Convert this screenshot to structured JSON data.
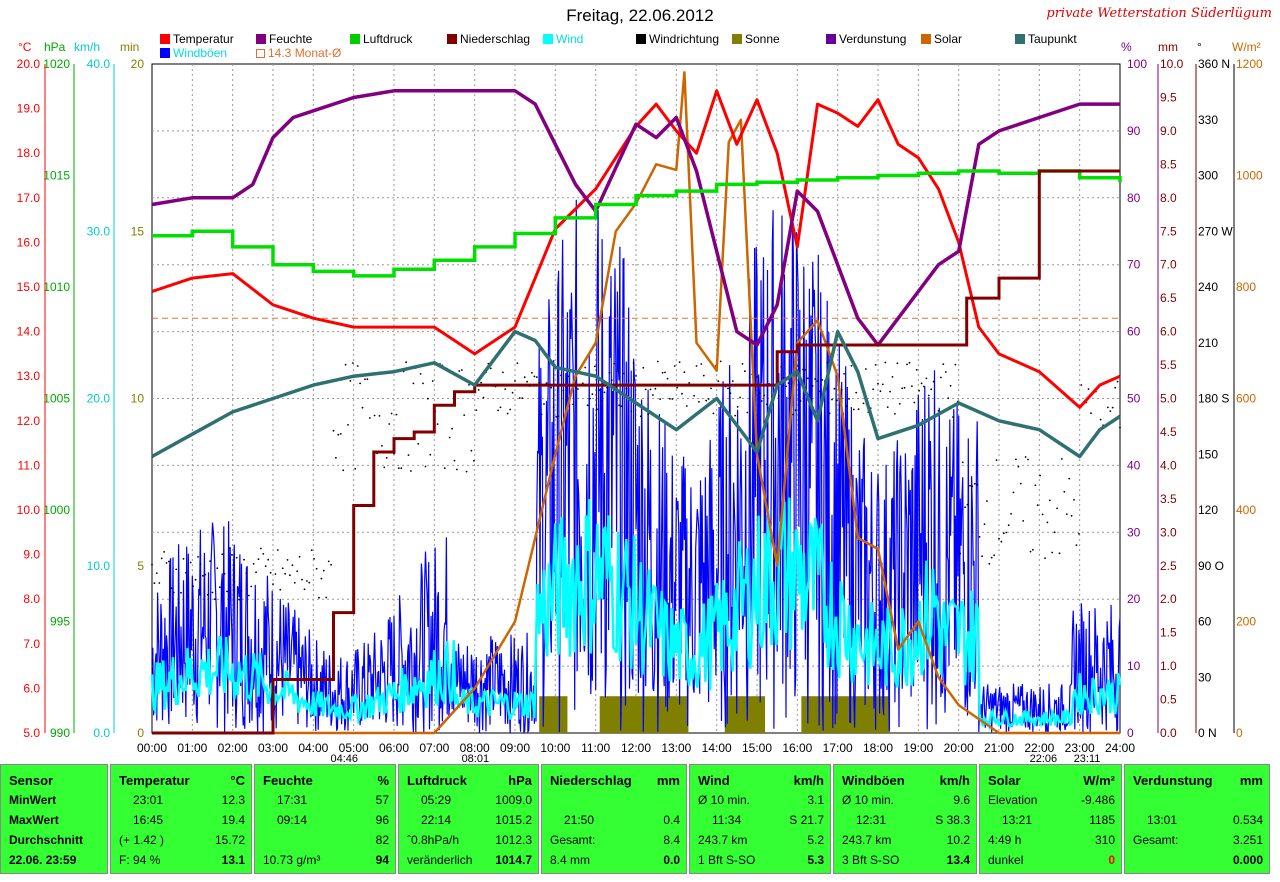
{
  "header": {
    "title": "Freitag, 22.06.2012",
    "station": "private Wetterstation Süderlügum"
  },
  "legend": [
    {
      "label": "Temperatur",
      "color": "#ff0000"
    },
    {
      "label": "Feuchte",
      "color": "#800080"
    },
    {
      "label": "Luftdruck",
      "color": "#00cc00"
    },
    {
      "label": "Niederschlag",
      "color": "#800000"
    },
    {
      "label": "Wind",
      "color": "#00ffff"
    },
    {
      "label": "Windrichtung",
      "color": "#000000"
    },
    {
      "label": "Sonne",
      "color": "#808000"
    },
    {
      "label": "Verdunstung",
      "color": "#660099"
    },
    {
      "label": "Solar",
      "color": "#cc6600"
    },
    {
      "label": "Taupunkt",
      "color": "#2f7070"
    },
    {
      "label": "Windböen",
      "color": "#0000ff"
    },
    {
      "label": "14.3 Monat-Ø",
      "color": "#e07030"
    }
  ],
  "axes": {
    "left_units": [
      "°C",
      "hPa",
      "km/h",
      "min"
    ],
    "right_units": [
      "%",
      "mm",
      "°",
      "W/m²"
    ],
    "temp_ticks": [
      "20.0",
      "19.0",
      "18.0",
      "17.0",
      "16.0",
      "15.0",
      "14.0",
      "13.0",
      "12.0",
      "11.0",
      "10.0",
      "9.0",
      "8.0",
      "7.0",
      "6.0",
      "5.0"
    ],
    "hpa_ticks": [
      "1020",
      "1015",
      "1010",
      "1005",
      "1000",
      "995",
      "990"
    ],
    "kmh_ticks": [
      "40.0",
      "30.0",
      "20.0",
      "10.0",
      "0.0"
    ],
    "min_ticks": [
      "20",
      "15",
      "10",
      "5",
      "0"
    ],
    "pct_ticks": [
      "100",
      "90",
      "80",
      "70",
      "60",
      "50",
      "40",
      "30",
      "20",
      "10",
      "0"
    ],
    "mm_ticks": [
      "10.0",
      "9.5",
      "9.0",
      "8.5",
      "8.0",
      "7.5",
      "7.0",
      "6.5",
      "6.0",
      "5.5",
      "5.0",
      "4.5",
      "4.0",
      "3.5",
      "3.0",
      "2.5",
      "2.0",
      "1.5",
      "1.0",
      "0.5",
      "0.0"
    ],
    "deg_ticks": [
      "360 N",
      "330",
      "300",
      "270 W",
      "240",
      "210",
      "180 S",
      "150",
      "120",
      "90 O",
      "60",
      "30",
      "0 N"
    ],
    "wm2_ticks": [
      "1200",
      "1000",
      "800",
      "600",
      "400",
      "200",
      "0"
    ],
    "x_ticks": [
      "00:00",
      "01:00",
      "02:00",
      "03:00",
      "04:00",
      "05:00",
      "06:00",
      "07:00",
      "08:00",
      "09:00",
      "10:00",
      "11:00",
      "12:00",
      "13:00",
      "14:00",
      "15:00",
      "16:00",
      "17:00",
      "18:00",
      "19:00",
      "20:00",
      "21:00",
      "22:00",
      "23:00",
      "24:00"
    ],
    "x_markers": [
      "04:46",
      "08:01",
      "22:06",
      "23:11"
    ]
  },
  "chart_data": {
    "type": "line",
    "x_unit": "hour of day",
    "xlim": [
      0,
      24
    ],
    "month_avg_temp": 14.3,
    "series": [
      {
        "name": "Temperatur",
        "unit": "°C",
        "x": [
          0,
          1,
          2,
          3,
          4,
          5,
          6,
          7,
          8,
          9,
          9.5,
          10,
          11,
          12,
          12.5,
          13,
          13.5,
          14,
          14.5,
          15,
          15.5,
          16,
          16.5,
          17,
          17.5,
          18,
          18.5,
          19,
          19.5,
          20,
          20.5,
          21,
          22,
          23,
          23.5,
          24
        ],
        "values": [
          14.9,
          15.2,
          15.3,
          14.6,
          14.3,
          14.1,
          14.1,
          14.1,
          13.5,
          14.1,
          15.2,
          16.3,
          17.2,
          18.6,
          19.1,
          18.5,
          18.0,
          19.4,
          18.2,
          19.2,
          18.0,
          15.9,
          19.1,
          18.9,
          18.6,
          19.2,
          18.2,
          17.9,
          17.2,
          16.0,
          14.1,
          13.5,
          13.1,
          12.3,
          12.8,
          13.0
        ]
      },
      {
        "name": "Feuchte",
        "unit": "%",
        "x": [
          0,
          1,
          2,
          2.5,
          3,
          3.5,
          4,
          5,
          6,
          7,
          8,
          9,
          9.5,
          10,
          10.5,
          11,
          12,
          12.5,
          13,
          13.5,
          14,
          14.5,
          15,
          15.5,
          16,
          16.5,
          17,
          17.5,
          18,
          18.5,
          19,
          19.5,
          20,
          20.5,
          21,
          22,
          23,
          24
        ],
        "values": [
          79,
          80,
          80,
          82,
          89,
          92,
          93,
          95,
          96,
          96,
          96,
          96,
          94,
          88,
          82,
          78,
          91,
          89,
          92,
          84,
          72,
          60,
          58,
          64,
          81,
          78,
          70,
          62,
          58,
          62,
          66,
          70,
          72,
          88,
          90,
          92,
          94,
          94
        ]
      },
      {
        "name": "Luftdruck",
        "unit": "hPa",
        "x": [
          0,
          1,
          2,
          3,
          4,
          5,
          6,
          7,
          8,
          9,
          10,
          11,
          12,
          13,
          14,
          15,
          16,
          17,
          18,
          19,
          20,
          21,
          22,
          23,
          24
        ],
        "values": [
          1012.3,
          1012.5,
          1011.8,
          1011.0,
          1010.7,
          1010.5,
          1010.8,
          1011.2,
          1011.8,
          1012.4,
          1013.1,
          1013.7,
          1014.1,
          1014.3,
          1014.6,
          1014.7,
          1014.8,
          1014.9,
          1015.0,
          1015.1,
          1015.2,
          1015.1,
          1015.2,
          1014.9,
          1014.7
        ]
      },
      {
        "name": "Niederschlag",
        "unit": "mm",
        "x": [
          0,
          2.5,
          3,
          4,
          4.5,
          5,
          5.5,
          6,
          6.5,
          7,
          7.5,
          8,
          9,
          10,
          11,
          12,
          13,
          14,
          15,
          15.5,
          16,
          17,
          18,
          19,
          20,
          20.2,
          21,
          21.5,
          22,
          23,
          24
        ],
        "values": [
          0.0,
          0.0,
          0.8,
          0.8,
          1.8,
          3.4,
          4.2,
          4.4,
          4.5,
          4.9,
          5.1,
          5.2,
          5.2,
          5.2,
          5.2,
          5.2,
          5.2,
          5.2,
          5.2,
          5.7,
          5.8,
          5.8,
          5.8,
          5.8,
          5.8,
          6.5,
          6.8,
          6.8,
          8.4,
          8.4,
          8.4
        ]
      },
      {
        "name": "Taupunkt",
        "unit": "°C",
        "x": [
          0,
          1,
          2,
          3,
          4,
          5,
          6,
          7,
          8,
          9,
          9.5,
          10,
          11,
          12,
          13,
          14,
          15,
          15.5,
          16,
          16.5,
          17,
          17.5,
          18,
          19,
          20,
          21,
          22,
          23,
          23.5,
          24
        ],
        "values": [
          11.2,
          11.7,
          12.2,
          12.5,
          12.8,
          13.0,
          13.1,
          13.3,
          12.8,
          14.0,
          13.8,
          13.2,
          13.0,
          12.4,
          11.8,
          12.5,
          11.3,
          12.8,
          13.1,
          12.0,
          14.0,
          13.1,
          11.6,
          11.9,
          12.4,
          12.0,
          11.8,
          11.2,
          11.8,
          12.1
        ]
      }
    ],
    "solar": {
      "unit": "W/m²",
      "x": [
        0,
        7,
        8,
        9,
        9.5,
        10,
        10.5,
        11,
        11.5,
        12,
        12.5,
        13,
        13.2,
        13.5,
        14,
        14.3,
        14.6,
        15,
        15.5,
        16,
        16.5,
        17,
        17.5,
        18,
        18.5,
        19,
        19.5,
        20,
        21,
        24
      ],
      "values": [
        0,
        0,
        80,
        200,
        350,
        500,
        640,
        700,
        900,
        950,
        1020,
        1010,
        1185,
        700,
        650,
        1060,
        1100,
        500,
        300,
        700,
        740,
        640,
        350,
        330,
        150,
        200,
        100,
        50,
        0,
        0
      ]
    },
    "sunshine_hours": [
      [
        9.6,
        10.3
      ],
      [
        11.1,
        13.3
      ],
      [
        14.2,
        15.2
      ],
      [
        16.1,
        18.3
      ]
    ],
    "panel_note": "wind, gusts and wind direction shown as dense noisy traces"
  },
  "panels": [
    {
      "title": "Sensor",
      "unit": "",
      "rows": [
        [
          "MinWert",
          "",
          ""
        ],
        [
          "MaxWert",
          "",
          ""
        ],
        [
          "Durchschnitt",
          "",
          ""
        ],
        [
          "22.06. 23:59",
          "",
          ""
        ]
      ]
    },
    {
      "title": "Temperatur",
      "unit": "°C",
      "rows": [
        [
          "23:01",
          "",
          "12.3"
        ],
        [
          "16:45",
          "",
          "19.4"
        ],
        [
          "(+ 1.42 )",
          "",
          "15.72"
        ],
        [
          "F: 94 %",
          "",
          "13.1"
        ]
      ]
    },
    {
      "title": "Feuchte",
      "unit": "%",
      "rows": [
        [
          "17:31",
          "",
          "57"
        ],
        [
          "09:14",
          "",
          "96"
        ],
        [
          "",
          "",
          "82"
        ],
        [
          "10.73 g/m³",
          "",
          "94"
        ]
      ]
    },
    {
      "title": "Luftdruck",
      "unit": "hPa",
      "rows": [
        [
          "05:29",
          "",
          "1009.0"
        ],
        [
          "22:14",
          "",
          "1015.2"
        ],
        [
          "ˆ0.8hPa/h",
          "",
          "1012.3"
        ],
        [
          "veränderlich",
          "",
          "1014.7"
        ]
      ]
    },
    {
      "title": "Niederschlag",
      "unit": "mm",
      "rows": [
        [
          "",
          "",
          ""
        ],
        [
          "21:50",
          "",
          "0.4"
        ],
        [
          "Gesamt:",
          "",
          "8.4"
        ],
        [
          "8.4 mm",
          "",
          "0.0"
        ]
      ]
    },
    {
      "title": "Wind",
      "unit": "km/h",
      "rows": [
        [
          "Ø 10 min.",
          "",
          "3.1"
        ],
        [
          "11:34",
          "",
          "S 21.7"
        ],
        [
          "243.7 km",
          "",
          "5.2"
        ],
        [
          "1 Bft S-SO",
          "",
          "5.3"
        ]
      ]
    },
    {
      "title": "Windböen",
      "unit": "km/h",
      "rows": [
        [
          "Ø 10 min.",
          "",
          "9.6"
        ],
        [
          "12:31",
          "",
          "S 38.3"
        ],
        [
          "243.7 km",
          "",
          "10.2"
        ],
        [
          "3 Bft S-SO",
          "",
          "13.4"
        ]
      ]
    },
    {
      "title": "Solar",
      "unit": "W/m²",
      "rows": [
        [
          "Elevation",
          "",
          "-9.486"
        ],
        [
          "13:21",
          "",
          "1185"
        ],
        [
          "4:49 h",
          "",
          "310"
        ],
        [
          "dunkel",
          "",
          "0"
        ]
      ]
    },
    {
      "title": "Verdunstung",
      "unit": "mm",
      "rows": [
        [
          "",
          "",
          ""
        ],
        [
          "13:01",
          "",
          "0.534"
        ],
        [
          "Gesamt:",
          "",
          "3.251"
        ],
        [
          "",
          "",
          "0.000"
        ]
      ]
    }
  ]
}
